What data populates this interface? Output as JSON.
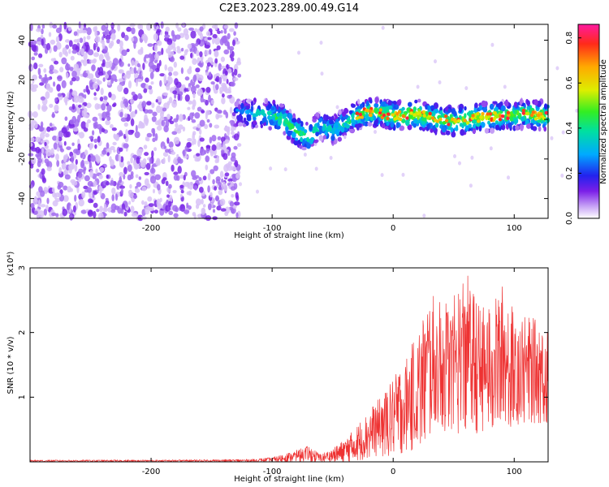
{
  "title": "C2E3.2023.289.00.49.G14",
  "chart_data": [
    {
      "type": "heatmap",
      "xlabel": "Height of straight line (km)",
      "ylabel": "Frequency (Hz)",
      "xlim": [
        -300,
        128
      ],
      "ylim": [
        -50,
        48
      ],
      "xticks": [
        -200,
        -100,
        0,
        100
      ],
      "yticks": [
        -40,
        -20,
        0,
        20,
        40
      ],
      "colorbar": {
        "label": "Normalized spectral amplitude",
        "range": [
          0,
          0.86
        ],
        "ticks": [
          "0.0",
          "0.2",
          "0.4",
          "0.6",
          "0.8"
        ]
      },
      "noise_region_x": [
        -300,
        -127
      ],
      "signal_track": {
        "x": [
          -130,
          -120,
          -110,
          -100,
          -90,
          -80,
          -70,
          -60,
          -50,
          -40,
          -30,
          -20,
          -10,
          0,
          10,
          20,
          30,
          40,
          50,
          60,
          70,
          80,
          90,
          100,
          110,
          120,
          128
        ],
        "frequency": [
          3,
          3,
          3,
          2,
          0,
          -6,
          -9,
          -3,
          -5,
          -2,
          2,
          4,
          3,
          2,
          2,
          3,
          1,
          0,
          -1,
          0,
          1,
          1,
          2,
          2,
          3,
          2,
          2
        ],
        "amplitude": [
          0.25,
          0.3,
          0.35,
          0.4,
          0.45,
          0.45,
          0.45,
          0.35,
          0.35,
          0.4,
          0.45,
          0.5,
          0.5,
          0.5,
          0.55,
          0.6,
          0.5,
          0.5,
          0.5,
          0.5,
          0.55,
          0.55,
          0.5,
          0.5,
          0.5,
          0.55,
          0.5
        ]
      }
    },
    {
      "type": "line",
      "xlabel": "Height of straight line (km)",
      "ylabel": "SNR (10 * v/v)",
      "y_multiplier": "(x10⁴)",
      "xlim": [
        -300,
        128
      ],
      "ylim": [
        0,
        3
      ],
      "xticks": [
        -200,
        -100,
        0,
        100
      ],
      "yticks": [
        1,
        2,
        3
      ],
      "series": [
        {
          "color": "#ee3333",
          "envelope_x": [
            -300,
            -200,
            -120,
            -110,
            -100,
            -90,
            -80,
            -70,
            -60,
            -50,
            -40,
            -30,
            -20,
            -10,
            0,
            10,
            20,
            30,
            40,
            50,
            60,
            70,
            80,
            90,
            100,
            110,
            120,
            128
          ],
          "envelope_max": [
            0.03,
            0.03,
            0.04,
            0.05,
            0.07,
            0.12,
            0.18,
            0.25,
            0.12,
            0.2,
            0.35,
            0.55,
            0.85,
            1.0,
            1.3,
            1.6,
            2.0,
            2.6,
            2.5,
            2.55,
            3.0,
            2.45,
            2.4,
            2.75,
            2.35,
            2.25,
            2.2,
            2.15
          ],
          "envelope_min": [
            0.0,
            0.0,
            0.0,
            0.0,
            0.0,
            0.0,
            0.0,
            0.0,
            0.0,
            0.0,
            0.0,
            0.02,
            0.05,
            0.08,
            0.1,
            0.15,
            0.2,
            0.35,
            0.5,
            0.4,
            0.45,
            0.4,
            0.5,
            0.55,
            0.5,
            0.6,
            0.6,
            0.6
          ]
        }
      ]
    }
  ]
}
